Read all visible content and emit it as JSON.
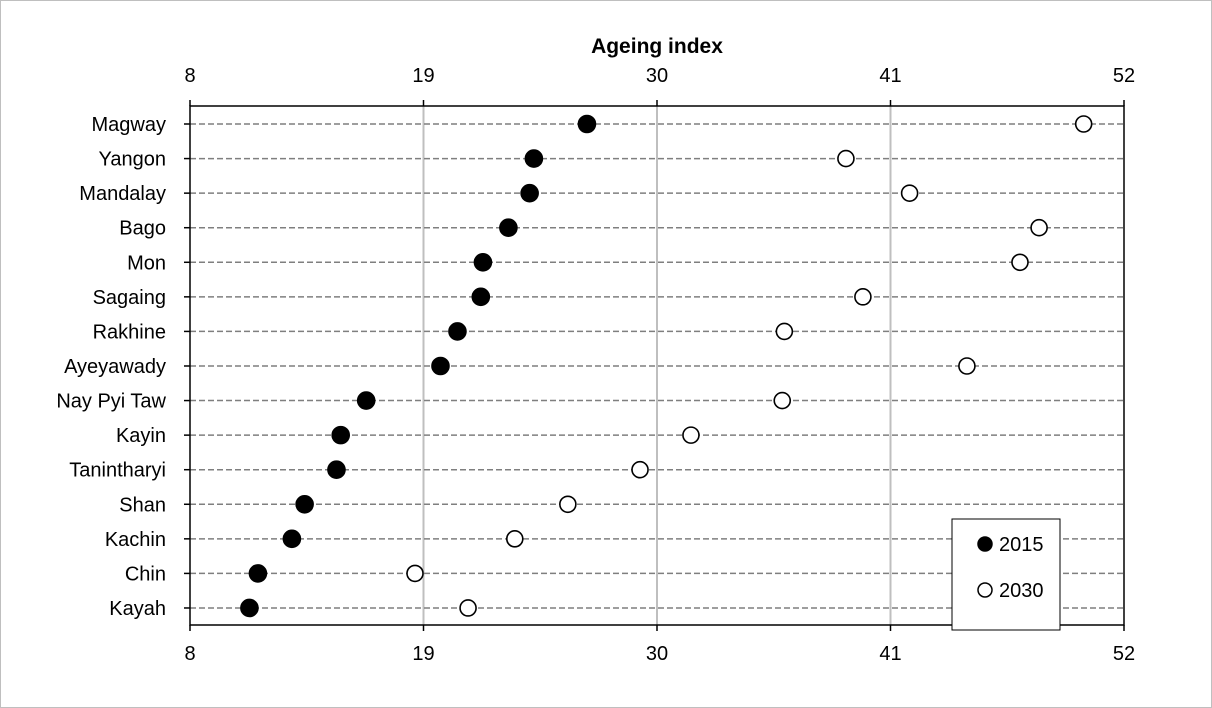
{
  "chart_data": {
    "type": "scatter",
    "title": "Ageing index",
    "xlim": [
      8,
      52
    ],
    "xticks": [
      8,
      19,
      30,
      41,
      52
    ],
    "xtick_labels": [
      "8",
      "19",
      "30",
      "41",
      "52"
    ],
    "categories": [
      "Magway",
      "Yangon",
      "Mandalay",
      "Bago",
      "Mon",
      "Sagaing",
      "Rakhine",
      "Ayeyawady",
      "Nay Pyi Taw",
      "Kayin",
      "Tanintharyi",
      "Shan",
      "Kachin",
      "Chin",
      "Kayah"
    ],
    "series": [
      {
        "name": "2015",
        "marker": "filled-circle",
        "color": "#000000",
        "values": [
          26.7,
          24.2,
          24.0,
          23.0,
          21.8,
          21.7,
          20.6,
          19.8,
          16.3,
          15.1,
          14.9,
          13.4,
          12.8,
          11.2,
          10.8
        ]
      },
      {
        "name": "2030",
        "marker": "open-circle",
        "color": "#ffffff",
        "values": [
          50.1,
          38.9,
          41.9,
          48.0,
          47.1,
          39.7,
          36.0,
          44.6,
          35.9,
          31.6,
          29.2,
          25.8,
          23.3,
          18.6,
          21.1
        ]
      }
    ],
    "grid": "vertical",
    "legend_position": "bottom-right"
  }
}
